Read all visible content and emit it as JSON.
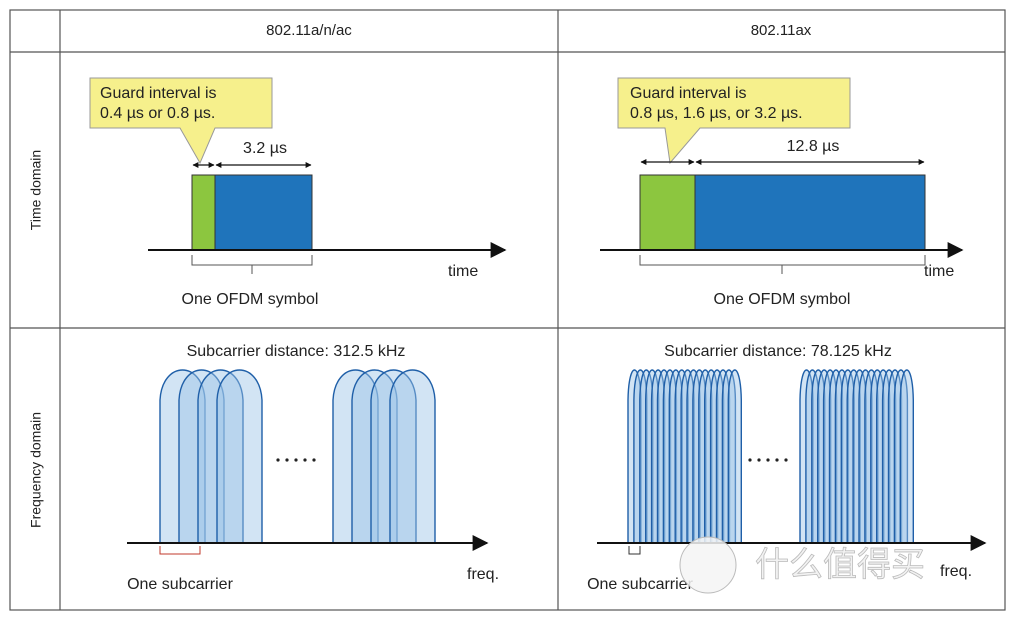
{
  "header": {
    "columns": [
      "802.11a/n/ac",
      "802.11ax"
    ]
  },
  "rows": [
    {
      "label": "Time domain",
      "cells": [
        {
          "callout": [
            "Guard interval is",
            "0.4 µs or 0.8 µs."
          ],
          "duration": "3.2 µs",
          "axis": "time",
          "symbol": "One OFDM symbol"
        },
        {
          "callout": [
            "Guard interval is",
            "0.8 µs, 1.6 µs, or 3.2 µs."
          ],
          "duration": "12.8 µs",
          "axis": "time",
          "symbol": "One OFDM symbol"
        }
      ]
    },
    {
      "label": "Frequency domain",
      "cells": [
        {
          "spacing": "Subcarrier distance: 312.5 kHz",
          "axis": "freq.",
          "subcarrier": "One subcarrier"
        },
        {
          "spacing": "Subcarrier distance: 78.125 kHz",
          "axis": "freq.",
          "subcarrier": "One subcarrier"
        }
      ]
    }
  ],
  "watermark": "什么值得买"
}
